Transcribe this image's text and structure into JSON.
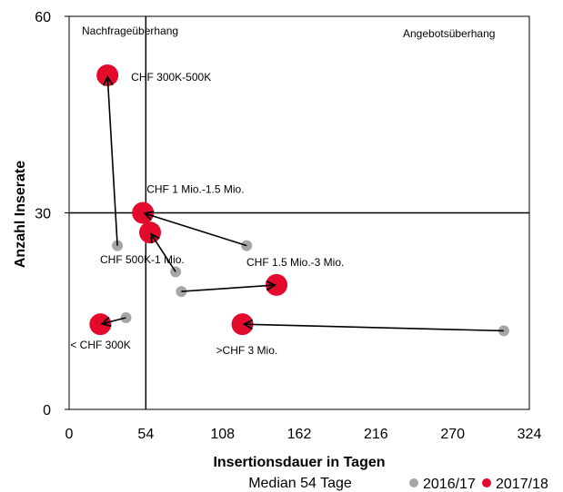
{
  "chart_data": {
    "type": "scatter",
    "xlabel": "Insertionsdauer in Tagen",
    "ylabel": "Anzahl Inserate",
    "xlim": [
      0,
      324
    ],
    "ylim": [
      0,
      60
    ],
    "x_ticks": [
      "0",
      "54",
      "108",
      "162",
      "216",
      "270",
      "324"
    ],
    "y_ticks": [
      "0",
      "30",
      "60"
    ],
    "reference_lines": {
      "x": 54,
      "y": 30
    },
    "median_note": "Median 54 Tage",
    "quadrant_labels": {
      "top_left": "Nachfrageüberhang",
      "top_right": "Angebotsüberhang"
    },
    "legend_position": "bottom-right",
    "series": [
      {
        "name": "2016/17",
        "color": "#a6a6a6"
      },
      {
        "name": "2017/18",
        "color": "#e30a2c"
      }
    ],
    "segments": [
      {
        "label": "< CHF 300K",
        "x_2016": 40,
        "y_2016": 14,
        "x_2017": 22,
        "y_2017": 13
      },
      {
        "label": "CHF 300K-500K",
        "x_2016": 34,
        "y_2016": 25,
        "x_2017": 27,
        "y_2017": 51
      },
      {
        "label": "CHF 500K-1 Mio.",
        "x_2016": 75,
        "y_2016": 21,
        "x_2017": 57,
        "y_2017": 27
      },
      {
        "label": "CHF 1 Mio.-1.5 Mio.",
        "x_2016": 125,
        "y_2016": 25,
        "x_2017": 52,
        "y_2017": 30
      },
      {
        "label": "CHF 1.5 Mio.-3 Mio.",
        "x_2016": 79,
        "y_2016": 18,
        "x_2017": 146,
        "y_2017": 19
      },
      {
        "label": ">CHF 3 Mio.",
        "x_2016": 306,
        "y_2016": 12,
        "x_2017": 122,
        "y_2017": 13
      }
    ]
  }
}
